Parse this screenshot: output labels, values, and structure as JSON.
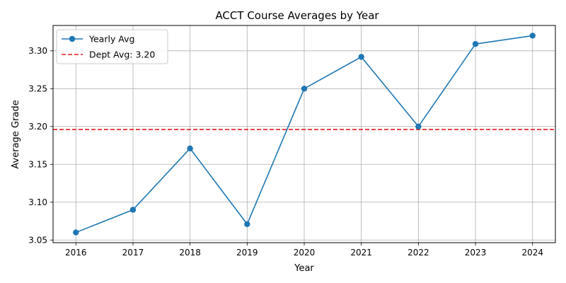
{
  "chart_data": {
    "type": "line",
    "title": "ACCT Course Averages by Year",
    "xlabel": "Year",
    "ylabel": "Average Grade",
    "x": [
      2016,
      2017,
      2018,
      2019,
      2020,
      2021,
      2022,
      2023,
      2024
    ],
    "series": [
      {
        "name": "Yearly Avg",
        "values": [
          3.06,
          3.09,
          3.171,
          3.071,
          3.25,
          3.292,
          3.2,
          3.309,
          3.32
        ],
        "color": "#1f77b4",
        "marker": "circle"
      }
    ],
    "reference_line": {
      "name": "Dept Avg: 3.20",
      "value": 3.196,
      "color": "#e41a1c",
      "style": "dashed"
    },
    "xticks": [
      "2016",
      "2017",
      "2018",
      "2019",
      "2020",
      "2021",
      "2022",
      "2023",
      "2024"
    ],
    "yticks": [
      "3.05",
      "3.10",
      "3.15",
      "3.20",
      "3.25",
      "3.30"
    ],
    "ylim": [
      3.0465,
      3.3335
    ],
    "xlim": [
      2015.6,
      2024.4
    ],
    "grid": true,
    "legend_position": "upper-left"
  }
}
